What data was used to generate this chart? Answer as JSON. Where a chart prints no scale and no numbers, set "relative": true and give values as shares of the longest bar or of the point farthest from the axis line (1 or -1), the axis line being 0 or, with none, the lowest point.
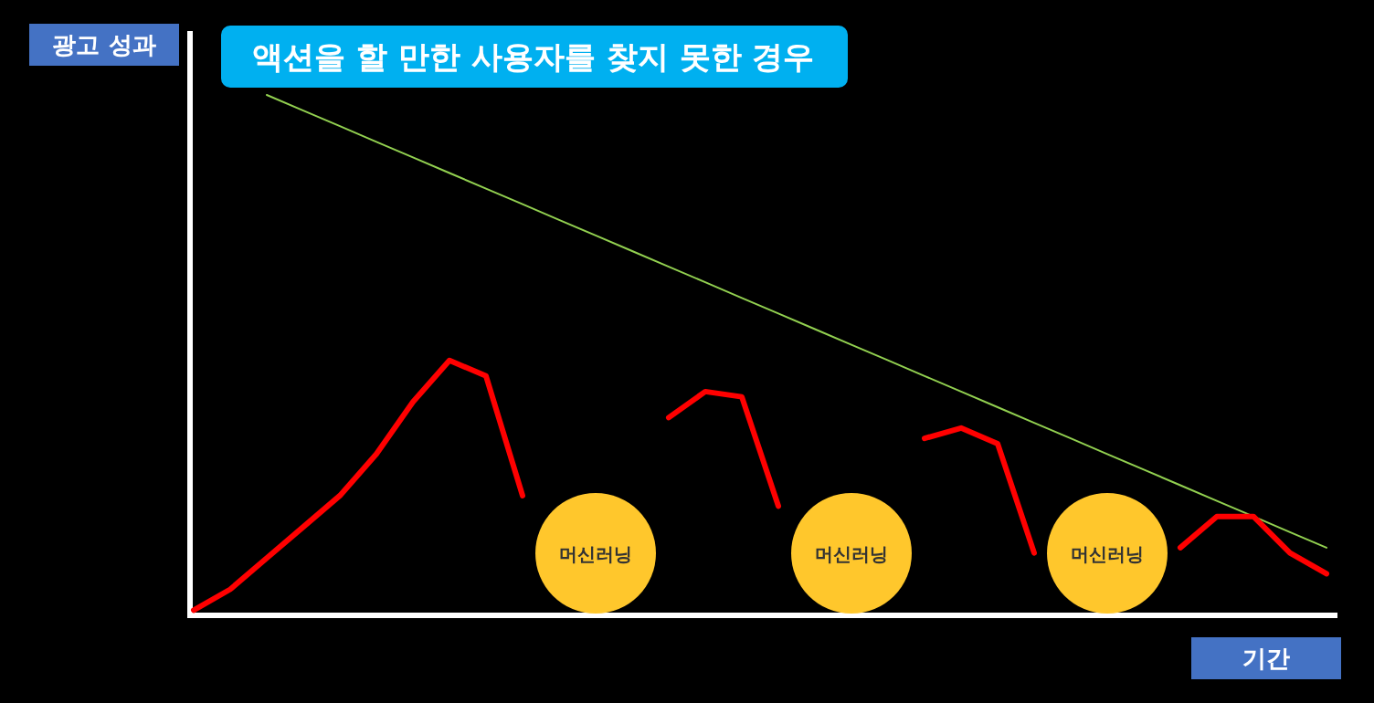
{
  "chart_data": {
    "type": "line",
    "title": "액션을 할 만한 사용자를 찾지 못한 경우",
    "xlabel": "기간",
    "ylabel": "광고 성과",
    "relative": true,
    "categories": [
      null,
      null,
      null,
      null,
      null,
      null,
      null,
      null,
      null,
      null,
      null,
      null,
      null,
      null,
      null,
      null,
      null,
      null,
      null,
      null,
      null,
      null,
      null,
      null,
      null,
      null,
      null,
      null,
      null,
      null,
      null,
      null
    ],
    "series": [
      {
        "color": "#ff0000",
        "values": [
          0.01,
          0.05,
          0.11,
          0.17,
          0.23,
          0.31,
          0.41,
          0.49,
          0.46,
          0.23,
          null,
          null,
          null,
          0.38,
          0.43,
          0.42,
          0.21,
          null,
          null,
          null,
          0.34,
          0.36,
          0.33,
          0.12,
          null,
          null,
          null,
          0.13,
          0.19,
          0.19,
          0.12,
          0.08
        ]
      },
      {
        "type": "line",
        "color": "#92d050",
        "values": [
          null,
          null,
          1.0,
          0.97,
          0.94,
          0.91,
          0.88,
          0.85,
          0.82,
          0.79,
          0.76,
          0.73,
          0.7,
          0.67,
          0.64,
          0.61,
          0.58,
          0.55,
          0.52,
          0.49,
          0.46,
          0.43,
          0.4,
          0.37,
          0.34,
          0.31,
          0.28,
          0.25,
          0.22,
          0.19,
          0.16,
          0.13
        ]
      }
    ],
    "annotations": [
      "머신러닝",
      "머신러닝",
      "머신러닝"
    ]
  }
}
